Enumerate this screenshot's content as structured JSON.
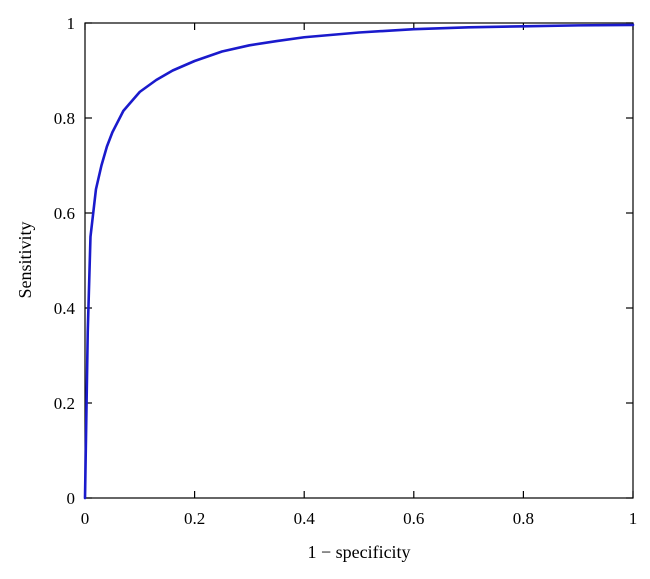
{
  "chart_data": {
    "type": "line",
    "xlabel": "1 − specificity",
    "ylabel": "Sensitivity",
    "xlim": [
      0,
      1
    ],
    "ylim": [
      0,
      1
    ],
    "xticks": [
      0,
      0.2,
      0.4,
      0.6,
      0.8,
      1
    ],
    "yticks": [
      0,
      0.2,
      0.4,
      0.6,
      0.8,
      1
    ],
    "xtick_labels": [
      "0",
      "0.2",
      "0.4",
      "0.6",
      "0.8",
      "1"
    ],
    "ytick_labels": [
      "0",
      "0.2",
      "0.4",
      "0.6",
      "0.8",
      "1"
    ],
    "grid": false,
    "series": [
      {
        "color": "#1a1acc",
        "x": [
          0,
          0.005,
          0.01,
          0.015,
          0.02,
          0.03,
          0.04,
          0.05,
          0.07,
          0.1,
          0.13,
          0.16,
          0.2,
          0.25,
          0.3,
          0.35,
          0.4,
          0.5,
          0.6,
          0.7,
          0.8,
          0.9,
          1.0
        ],
        "y": [
          0,
          0.35,
          0.55,
          0.6,
          0.65,
          0.7,
          0.74,
          0.77,
          0.815,
          0.855,
          0.88,
          0.9,
          0.92,
          0.94,
          0.953,
          0.962,
          0.97,
          0.98,
          0.987,
          0.991,
          0.993,
          0.995,
          0.996
        ]
      }
    ]
  }
}
